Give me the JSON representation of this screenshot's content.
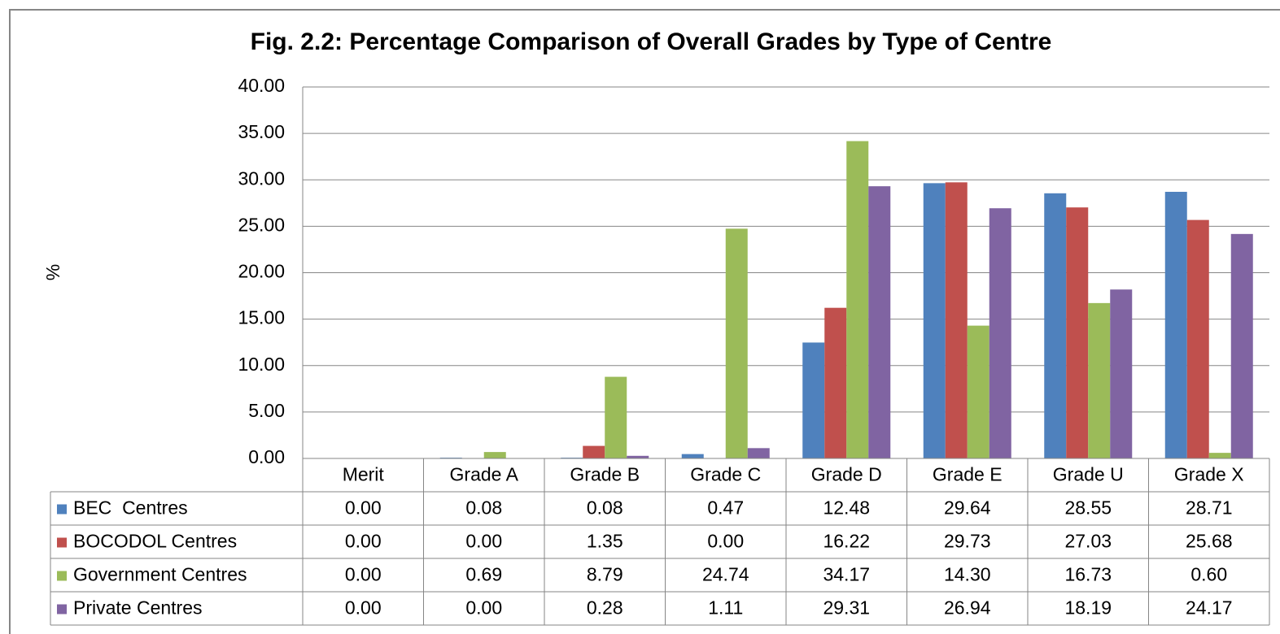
{
  "chart_data": {
    "type": "bar",
    "title": "Fig. 2.2: Percentage Comparison of Overall Grades by Type of Centre",
    "y_label": "%",
    "categories": [
      "Merit",
      "Grade A",
      "Grade B",
      "Grade C",
      "Grade D",
      "Grade E",
      "Grade U",
      "Grade X"
    ],
    "ylim": [
      0,
      40
    ],
    "yticks": [
      {
        "value": 0,
        "label": "0.00"
      },
      {
        "value": 5,
        "label": "5.00"
      },
      {
        "value": 10,
        "label": "10.00"
      },
      {
        "value": 15,
        "label": "15.00"
      },
      {
        "value": 20,
        "label": "20.00"
      },
      {
        "value": 25,
        "label": "25.00"
      },
      {
        "value": 30,
        "label": "30.00"
      },
      {
        "value": 35,
        "label": "35.00"
      },
      {
        "value": 40,
        "label": "40.00"
      }
    ],
    "grid": true,
    "series": [
      {
        "name": "BEC  Centres",
        "color": "#4f81bd",
        "values": [
          0,
          0.08,
          0.08,
          0.47,
          12.48,
          29.64,
          28.55,
          28.71
        ],
        "value_labels": [
          "0.00",
          "0.08",
          "0.08",
          "0.47",
          "12.48",
          "29.64",
          "28.55",
          "28.71"
        ]
      },
      {
        "name": "BOCODOL Centres",
        "color": "#c0504d",
        "values": [
          0,
          0,
          1.35,
          0,
          16.22,
          29.73,
          27.03,
          25.68
        ],
        "value_labels": [
          "0.00",
          "0.00",
          "1.35",
          "0.00",
          "16.22",
          "29.73",
          "27.03",
          "25.68"
        ]
      },
      {
        "name": "Government Centres",
        "color": "#9bbb59",
        "values": [
          0,
          0.69,
          8.79,
          24.74,
          34.17,
          14.3,
          16.73,
          0.6
        ],
        "value_labels": [
          "0.00",
          "0.69",
          "8.79",
          "24.74",
          "34.17",
          "14.30",
          "16.73",
          "0.60"
        ]
      },
      {
        "name": "Private Centres",
        "color": "#8064a2",
        "values": [
          0,
          0,
          0.28,
          1.11,
          29.31,
          26.94,
          18.19,
          24.17
        ],
        "value_labels": [
          "0.00",
          "0.00",
          "0.28",
          "1.11",
          "29.31",
          "26.94",
          "18.19",
          "24.17"
        ]
      }
    ]
  }
}
